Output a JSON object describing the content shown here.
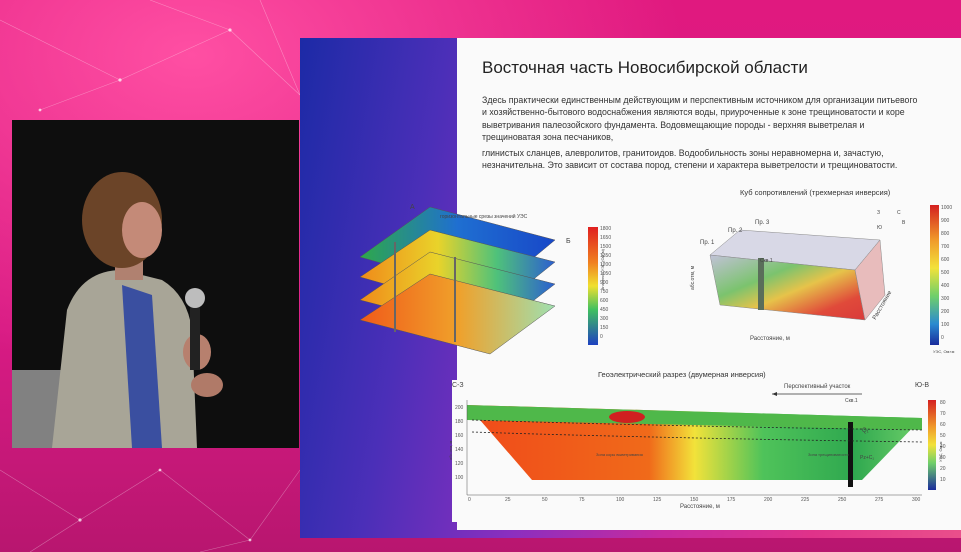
{
  "slide": {
    "title": "Восточная часть Новосибирской области",
    "body_paragraph_1": "Здесь практически единственным действующим и перспективным источником для организации питьевого и хозяйственно-бытового водоснабжения являются воды, приуроченные к зоне трещиноватости и коре выветривания палеозойского фундамента. Водовмещающие породы - верхняя выветрелая и трещиноватая зона песчаников,",
    "body_paragraph_2": "глинистых сланцев, алевролитов, гранитоидов. Водообильность зоны неравномерна и, зачастую, незначительна. Это зависит от состава пород, степени и характера выветрелости и трещиноватости."
  },
  "figure_left": {
    "label_a": "А",
    "label_b": "Б",
    "caption": "горизонтальные срезы значений УЭС",
    "scale_ticks": [
      "1800",
      "1650",
      "1500",
      "1350",
      "1200",
      "1050",
      "900",
      "750",
      "600",
      "450",
      "300",
      "150",
      "0"
    ],
    "scale_label": "Значения УЭС (Ом*м)"
  },
  "figure_cube": {
    "caption": "Куб сопротивлений (трехмерная инверсия)",
    "profile_labels": [
      "Пр. 1",
      "Пр. 2",
      "Пр. 3",
      "Скв.1"
    ],
    "axis_depth": "абс.отм, м",
    "axis_distance_x": "Расстояние, м",
    "axis_distance_y": "Расстояние",
    "scale_label": "УЭС, Ом×м",
    "scale_ticks": [
      "1000",
      "900",
      "800",
      "700",
      "600",
      "500",
      "400",
      "300",
      "200",
      "100",
      "0"
    ],
    "compass": "С",
    "compass_labels": [
      "Ю",
      "В",
      "З"
    ]
  },
  "figure_section": {
    "caption": "Геоэлектрический разрез (двумерная инверсия)",
    "left_label": "С-З",
    "right_label": "Ю-В",
    "prospective_label": "Перспективный участок",
    "well_label": "Скв.1",
    "layer_label_1": "Q₁",
    "layer_label_2": "Pz+C₁",
    "zone_label": "Зона коры выветривания",
    "annotation": "Зона трещиноватости",
    "x_axis_label": "Расстояние, м",
    "y_axis_label": "абс.отм, м",
    "scale_label": "УЭС, Ом·м",
    "x_ticks": [
      "0",
      "25",
      "50",
      "75",
      "100",
      "125",
      "150",
      "175",
      "200",
      "225",
      "250",
      "275",
      "300"
    ],
    "y_ticks": [
      "200",
      "180",
      "160",
      "140",
      "120",
      "100"
    ],
    "scale_ticks": [
      "80",
      "70",
      "60",
      "50",
      "40",
      "30",
      "20",
      "10"
    ]
  }
}
